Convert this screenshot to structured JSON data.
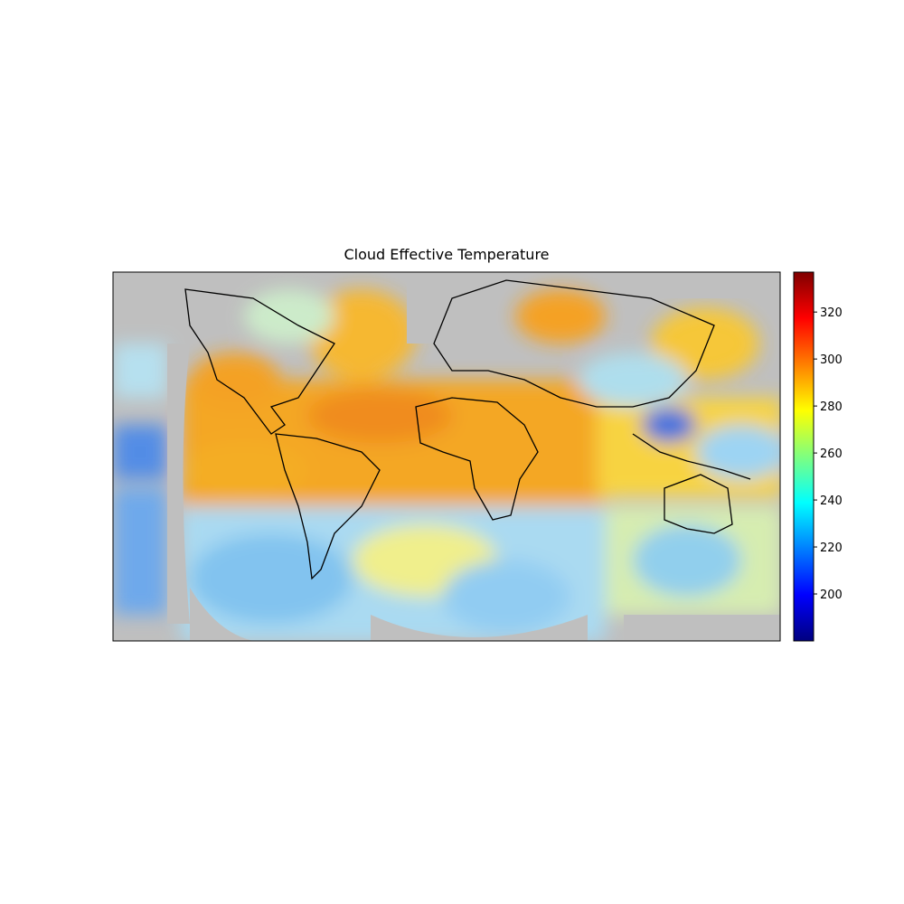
{
  "chart_data": {
    "type": "map",
    "title": "Cloud Effective Temperature",
    "colorbar": {
      "colormap": "jet",
      "lim": [
        180,
        337
      ],
      "ticks": [
        200,
        220,
        240,
        260,
        280,
        300,
        320
      ]
    }
  }
}
